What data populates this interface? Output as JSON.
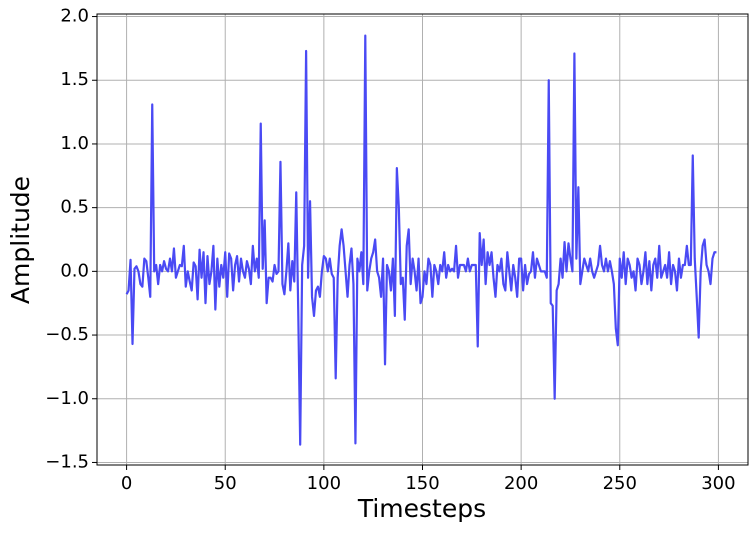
{
  "chart_data": {
    "type": "line",
    "x_label": "Timesteps",
    "y_label": "Amplitude",
    "x": [
      0,
      1,
      2,
      3,
      4,
      5,
      6,
      7,
      8,
      9,
      10,
      11,
      12,
      13,
      14,
      15,
      16,
      17,
      18,
      19,
      20,
      21,
      22,
      23,
      24,
      25,
      26,
      27,
      28,
      29,
      30,
      31,
      32,
      33,
      34,
      35,
      36,
      37,
      38,
      39,
      40,
      41,
      42,
      43,
      44,
      45,
      46,
      47,
      48,
      49,
      50,
      51,
      52,
      53,
      54,
      55,
      56,
      57,
      58,
      59,
      60,
      61,
      62,
      63,
      64,
      65,
      66,
      67,
      68,
      69,
      70,
      71,
      72,
      73,
      74,
      75,
      76,
      77,
      78,
      79,
      80,
      81,
      82,
      83,
      84,
      85,
      86,
      87,
      88,
      89,
      90,
      91,
      92,
      93,
      94,
      95,
      96,
      97,
      98,
      99,
      100,
      101,
      102,
      103,
      104,
      105,
      106,
      107,
      108,
      109,
      110,
      111,
      112,
      113,
      114,
      115,
      116,
      117,
      118,
      119,
      120,
      121,
      122,
      123,
      124,
      125,
      126,
      127,
      128,
      129,
      130,
      131,
      132,
      133,
      134,
      135,
      136,
      137,
      138,
      139,
      140,
      141,
      142,
      143,
      144,
      145,
      146,
      147,
      148,
      149,
      150,
      151,
      152,
      153,
      154,
      155,
      156,
      157,
      158,
      159,
      160,
      161,
      162,
      163,
      164,
      165,
      166,
      167,
      168,
      169,
      170,
      171,
      172,
      173,
      174,
      175,
      176,
      177,
      178,
      179,
      180,
      181,
      182,
      183,
      184,
      185,
      186,
      187,
      188,
      189,
      190,
      191,
      192,
      193,
      194,
      195,
      196,
      197,
      198,
      199,
      200,
      201,
      202,
      203,
      204,
      205,
      206,
      207,
      208,
      209,
      210,
      211,
      212,
      213,
      214,
      215,
      216,
      217,
      218,
      219,
      220,
      221,
      222,
      223,
      224,
      225,
      226,
      227,
      228,
      229,
      230,
      231,
      232,
      233,
      234,
      235,
      236,
      237,
      238,
      239,
      240,
      241,
      242,
      243,
      244,
      245,
      246,
      247,
      248,
      249,
      250,
      251,
      252,
      253,
      254,
      255,
      256,
      257,
      258,
      259,
      260,
      261,
      262,
      263,
      264,
      265,
      266,
      267,
      268,
      269,
      270,
      271,
      272,
      273,
      274,
      275,
      276,
      277,
      278,
      279,
      280,
      281,
      282,
      283,
      284,
      285,
      286,
      287,
      288,
      289,
      290,
      291,
      292,
      293,
      294,
      295,
      296,
      297,
      298,
      299
    ],
    "values": [
      -0.18,
      -0.15,
      0.09,
      -0.57,
      0.02,
      0.04,
      0.0,
      -0.1,
      -0.12,
      0.1,
      0.08,
      -0.05,
      -0.2,
      1.31,
      0.0,
      0.05,
      -0.1,
      0.05,
      0.0,
      0.08,
      0.02,
      0.0,
      0.1,
      0.0,
      0.18,
      -0.05,
      0.0,
      0.05,
      0.04,
      0.2,
      -0.12,
      0.0,
      -0.08,
      -0.15,
      0.07,
      0.04,
      -0.22,
      0.17,
      -0.05,
      0.15,
      -0.25,
      0.12,
      -0.1,
      0.0,
      0.2,
      -0.3,
      0.1,
      -0.12,
      0.05,
      -0.05,
      0.15,
      -0.2,
      0.14,
      0.1,
      -0.15,
      0.05,
      0.12,
      -0.08,
      0.1,
      0.0,
      -0.05,
      0.08,
      0.02,
      -0.1,
      0.2,
      0.0,
      0.1,
      -0.05,
      1.16,
      0.02,
      0.4,
      -0.25,
      -0.05,
      -0.05,
      -0.08,
      0.05,
      -0.02,
      0.0,
      0.86,
      -0.1,
      -0.18,
      0.0,
      0.22,
      -0.15,
      0.08,
      -0.08,
      0.62,
      -0.3,
      -1.36,
      0.05,
      0.2,
      1.73,
      -0.05,
      0.55,
      -0.2,
      -0.35,
      -0.15,
      -0.12,
      -0.2,
      0.0,
      0.12,
      0.1,
      0.0,
      0.1,
      -0.02,
      -0.05,
      -0.84,
      -0.05,
      0.2,
      0.33,
      0.2,
      0.0,
      -0.2,
      0.05,
      0.18,
      -0.1,
      -1.35,
      0.1,
      0.0,
      0.15,
      -0.1,
      1.85,
      -0.15,
      0.0,
      0.1,
      0.15,
      0.25,
      0.0,
      -0.05,
      -0.2,
      0.1,
      -0.73,
      0.05,
      0.0,
      -0.15,
      0.1,
      -0.35,
      0.81,
      0.5,
      -0.1,
      -0.05,
      -0.38,
      0.2,
      0.33,
      -0.1,
      0.1,
      0.0,
      -0.15,
      0.1,
      -0.25,
      -0.2,
      0.0,
      -0.1,
      0.1,
      0.05,
      -0.2,
      0.05,
      0.0,
      -0.1,
      0.05,
      0.0,
      0.15,
      -0.05,
      0.05,
      0.0,
      0.02,
      0.0,
      0.2,
      -0.05,
      0.05,
      0.05,
      0.05,
      0.0,
      0.1,
      0.0,
      0.05,
      0.05,
      0.05,
      -0.59,
      0.3,
      0.05,
      0.25,
      -0.1,
      0.15,
      0.05,
      0.15,
      -0.05,
      -0.2,
      0.05,
      0.0,
      0.1,
      -0.1,
      -0.15,
      0.15,
      0.0,
      -0.15,
      0.05,
      -0.05,
      -0.2,
      0.1,
      0.1,
      -0.15,
      0.05,
      -0.1,
      -0.02,
      0.0,
      0.15,
      -0.05,
      0.1,
      0.05,
      0.0,
      0.0,
      0.0,
      -0.05,
      1.5,
      -0.25,
      -0.27,
      -1.0,
      -0.15,
      -0.1,
      0.1,
      -0.05,
      0.23,
      0.0,
      0.22,
      0.1,
      0.0,
      1.71,
      0.1,
      0.66,
      -0.1,
      0.0,
      0.1,
      0.05,
      0.0,
      0.1,
      0.0,
      -0.05,
      0.0,
      0.05,
      0.2,
      0.05,
      0.0,
      0.1,
      0.0,
      0.08,
      0.0,
      -0.1,
      -0.45,
      -0.58,
      0.1,
      -0.05,
      0.15,
      -0.1,
      0.1,
      0.05,
      -0.05,
      0.0,
      -0.15,
      0.1,
      0.05,
      -0.1,
      0.0,
      0.15,
      -0.1,
      0.08,
      -0.15,
      0.05,
      0.1,
      -0.05,
      0.2,
      -0.05,
      0.0,
      0.05,
      -0.05,
      0.15,
      -0.1,
      0.05,
      0.0,
      -0.15,
      0.1,
      -0.05,
      0.05,
      0.05,
      0.2,
      0.05,
      0.05,
      0.91,
      0.1,
      -0.2,
      -0.52,
      0.0,
      0.2,
      0.25,
      0.05,
      0.0,
      -0.1,
      0.1,
      0.15,
      0.15
    ],
    "color": "#4a4af4",
    "xlim": [
      -15,
      315
    ],
    "ylim": [
      -1.52,
      2.02
    ],
    "xticks": [
      0,
      50,
      100,
      150,
      200,
      250,
      300
    ],
    "yticks": [
      {
        "value": -1.5,
        "label": "−1.5"
      },
      {
        "value": -1.0,
        "label": "−1.0"
      },
      {
        "value": -0.5,
        "label": "−0.5"
      },
      {
        "value": 0,
        "label": "0.0"
      },
      {
        "value": 0.5,
        "label": "0.5"
      },
      {
        "value": 1.0,
        "label": "1.0"
      },
      {
        "value": 1.5,
        "label": "1.5"
      },
      {
        "value": 2.0,
        "label": "2.0"
      }
    ],
    "grid": true
  }
}
